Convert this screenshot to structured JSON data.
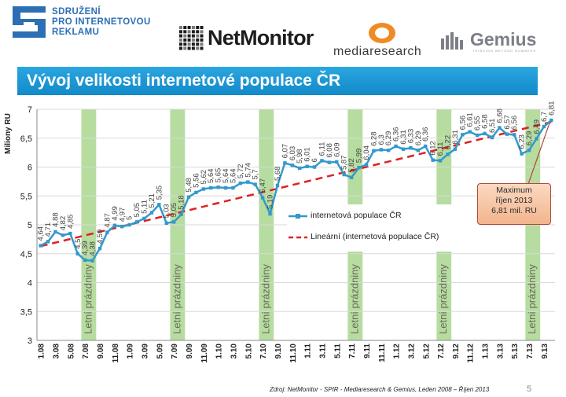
{
  "header": {
    "spir_lines": [
      "SDRUŽENÍ",
      "PRO INTERNETOVOU",
      "REKLAMU"
    ],
    "netmonitor": "NetMonitor",
    "mediaresearch": "mediaresearch",
    "gemius": "Gemius",
    "gemius_tagline": "THINKING BEYOND NUMBERS"
  },
  "title": "Vývoj velikosti internetové populace ČR",
  "colors": {
    "series": "#3399cc",
    "trend": "#dd2222",
    "band": "#b6dca0",
    "title_bar": "#1a96d2"
  },
  "callout": [
    "Maximum",
    "říjen 2013",
    "6,81 mil. RU"
  ],
  "source": "Zdroj: NetMonitor - SPIR - Mediaresearch & Gemius, Leden 2008 – Říjen 2013",
  "page_number": "5",
  "chart_data": {
    "type": "line",
    "ylabel": "Miliony RU",
    "ylim": [
      3,
      7
    ],
    "y_ticks": [
      "3",
      "3,5",
      "4",
      "4,5",
      "5",
      "5,5",
      "6",
      "6,5",
      "7"
    ],
    "x": [
      "1.08",
      "2.08",
      "3.08",
      "4.08",
      "5.08",
      "6.08",
      "7.08",
      "8.08",
      "9.08",
      "10.08",
      "11.08",
      "12.08",
      "1.09",
      "2.09",
      "3.09",
      "4.09",
      "5.09",
      "6.09",
      "7.09",
      "8.09",
      "9.09",
      "10.09",
      "11.09",
      "12.09",
      "1.10",
      "2.10",
      "3.10",
      "4.10",
      "5.10",
      "6.10",
      "7.10",
      "8.10",
      "9.10",
      "10.10",
      "11.10",
      "12.10",
      "1.11",
      "2.11",
      "3.11",
      "4.11",
      "5.11",
      "6.11",
      "7.11",
      "8.11",
      "9.11",
      "10.11",
      "11.11",
      "12.11",
      "1.12",
      "2.12",
      "3.12",
      "4.12",
      "5.12",
      "6.12",
      "7.12",
      "8.12",
      "9.12",
      "10.12",
      "11.12",
      "12.12",
      "1.13",
      "2.13",
      "3.13",
      "4.13",
      "5.13",
      "6.13",
      "7.13",
      "8.13",
      "9.13",
      "10.13"
    ],
    "x_tick_labels": [
      "1.08",
      "3.08",
      "5.08",
      "7.08",
      "9.08",
      "11.08",
      "1.09",
      "3.09",
      "5.09",
      "7.09",
      "9.09",
      "11.09",
      "1.10",
      "3.10",
      "5.10",
      "7.10",
      "9.10",
      "11.10",
      "1.11",
      "3.11",
      "5.11",
      "7.11",
      "9.11",
      "11.11",
      "1.12",
      "3.12",
      "5.12",
      "7.12",
      "9.12",
      "11.12",
      "1.13",
      "3.13",
      "5.13",
      "7.13",
      "9.13"
    ],
    "series": [
      {
        "name": "internetová populace ČR",
        "values": [
          4.64,
          4.71,
          4.88,
          4.82,
          4.85,
          4.5,
          4.39,
          4.38,
          4.59,
          4.87,
          4.99,
          4.97,
          5.0,
          5.05,
          5.11,
          5.21,
          5.35,
          5.03,
          5.05,
          5.18,
          5.48,
          5.56,
          5.62,
          5.64,
          5.65,
          5.64,
          5.64,
          5.72,
          5.74,
          5.7,
          5.47,
          5.19,
          5.68,
          6.07,
          6.03,
          5.98,
          6.01,
          6.0,
          6.11,
          6.08,
          6.09,
          5.87,
          5.82,
          5.99,
          6.04,
          6.28,
          6.3,
          6.29,
          6.36,
          6.31,
          6.33,
          6.29,
          6.36,
          6.12,
          6.11,
          6.22,
          6.31,
          6.56,
          6.61,
          6.55,
          6.58,
          6.51,
          6.68,
          6.57,
          6.56,
          6.23,
          6.29,
          6.49,
          6.7,
          6.81
        ]
      },
      {
        "name": "Lineární (internetová populace ČR)",
        "start": 4.63,
        "end": 6.78
      }
    ],
    "summer_bands": [
      {
        "from": "7.08",
        "to": "8.08",
        "label": "Letní prázdniny"
      },
      {
        "from": "7.09",
        "to": "8.09",
        "label": "Letní prázdniny"
      },
      {
        "from": "7.10",
        "to": "8.10",
        "label": "Letní prázdniny"
      },
      {
        "from": "7.11",
        "to": "8.11",
        "label": "Letní prázdniny"
      },
      {
        "from": "7.12",
        "to": "8.12",
        "label": "Letní prázdniny"
      },
      {
        "from": "7.13",
        "to": "8.13",
        "label": "Letní prázdniny"
      }
    ],
    "grid": true,
    "legend_position": "center-right"
  }
}
